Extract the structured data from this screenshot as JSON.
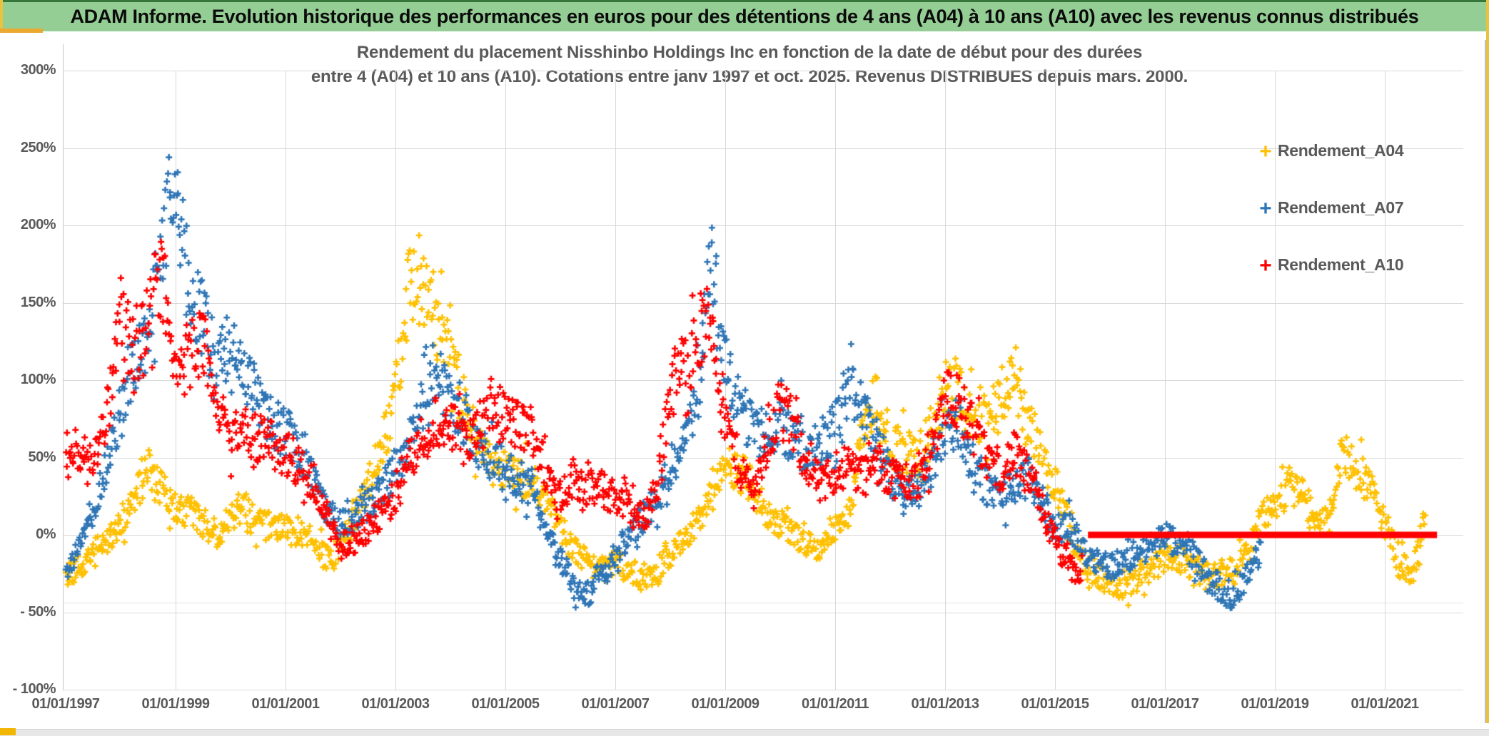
{
  "header": {
    "title": "ADAM Informe. Evolution historique des performances en euros pour des détentions de 4 ans (A04) à 10 ans (A10) avec les revenus connus distribués"
  },
  "chart_data": {
    "type": "scatter",
    "title_line1": "Rendement du placement Nisshinbo Holdings Inc en fonction de la date de début pour des durées",
    "title_line2": "entre 4 (A04) et 10 ans (A10). Cotations entre janv 1997 et oct. 2025. Revenus DISTRIBUES depuis mars. 2000.",
    "marker": "plus",
    "grid": true,
    "x_domain": [
      1996.95,
      2022.4
    ],
    "y_domain": [
      -100,
      300
    ],
    "y_ticks": [
      {
        "label": "300%",
        "value": 300
      },
      {
        "label": "250%",
        "value": 250
      },
      {
        "label": "200%",
        "value": 200
      },
      {
        "label": "150%",
        "value": 150
      },
      {
        "label": "100%",
        "value": 100
      },
      {
        "label": "50%",
        "value": 50
      },
      {
        "label": "0%",
        "value": 0
      },
      {
        "label": "- 50%",
        "value": -50
      },
      {
        "label": "- 100%",
        "value": -100
      }
    ],
    "x_ticks": [
      {
        "label": "01/01/1997",
        "year": 1997
      },
      {
        "label": "01/01/1999",
        "year": 1999
      },
      {
        "label": "01/01/2001",
        "year": 2001
      },
      {
        "label": "01/01/2003",
        "year": 2003
      },
      {
        "label": "01/01/2005",
        "year": 2005
      },
      {
        "label": "01/01/2007",
        "year": 2007
      },
      {
        "label": "01/01/2009",
        "year": 2009
      },
      {
        "label": "01/01/2011",
        "year": 2011
      },
      {
        "label": "01/01/2013",
        "year": 2013
      },
      {
        "label": "01/01/2015",
        "year": 2015
      },
      {
        "label": "01/01/2017",
        "year": 2017
      },
      {
        "label": "01/01/2019",
        "year": 2019
      },
      {
        "label": "01/01/2021",
        "year": 2021
      }
    ],
    "legend": {
      "position": "right",
      "entries": [
        {
          "label": "Rendement_A04",
          "color": "#FFC000"
        },
        {
          "label": "Rendement_A07",
          "color": "#2E75B6"
        },
        {
          "label": "Rendement_A10",
          "color": "#FF0000"
        }
      ]
    },
    "series": [
      {
        "name": "Rendement_A04",
        "color": "#FFC000",
        "start": 1997.0,
        "step": 0.25,
        "values": [
          -25,
          -20,
          -12,
          -5,
          8,
          25,
          42,
          28,
          18,
          15,
          8,
          0,
          12,
          20,
          8,
          5,
          5,
          2,
          -5,
          -15,
          -8,
          10,
          30,
          55,
          90,
          165,
          165,
          140,
          115,
          85,
          55,
          45,
          42,
          38,
          35,
          22,
          5,
          -10,
          -18,
          -22,
          -18,
          -22,
          -28,
          -25,
          -12,
          -4,
          8,
          30,
          50,
          42,
          30,
          15,
          8,
          0,
          -5,
          -8,
          2,
          15,
          70,
          92,
          58,
          55,
          50,
          68,
          92,
          90,
          80,
          75,
          82,
          108,
          72,
          55,
          32,
          5,
          -18,
          -25,
          -32,
          -35,
          -28,
          -22,
          -15,
          -15,
          -20,
          -25,
          -25,
          -22,
          -12,
          12,
          18,
          32,
          28,
          5,
          12,
          52,
          42,
          28,
          8,
          -15,
          -25,
          15
        ]
      },
      {
        "name": "Rendement_A07",
        "color": "#2E75B6",
        "start": 1997.0,
        "step": 0.25,
        "values": [
          -22,
          -5,
          15,
          45,
          80,
          115,
          135,
          185,
          235,
          150,
          140,
          110,
          120,
          110,
          85,
          72,
          68,
          55,
          35,
          15,
          5,
          12,
          20,
          30,
          42,
          60,
          85,
          100,
          92,
          75,
          58,
          48,
          45,
          36,
          28,
          0,
          -18,
          -32,
          -38,
          -25,
          -12,
          0,
          10,
          22,
          36,
          55,
          90,
          185,
          110,
          80,
          70,
          65,
          72,
          62,
          52,
          58,
          72,
          92,
          80,
          62,
          38,
          25,
          28,
          45,
          68,
          72,
          45,
          32,
          25,
          30,
          38,
          25,
          2,
          8,
          -10,
          -15,
          -20,
          -18,
          -10,
          -8,
          0,
          -8,
          -12,
          -25,
          -35,
          -40,
          -25,
          -10
        ]
      },
      {
        "name": "Rendement_A10",
        "color": "#FF0000",
        "start": 1997.0,
        "step": 0.25,
        "values": [
          52,
          55,
          42,
          75,
          150,
          112,
          150,
          165,
          110,
          115,
          125,
          85,
          60,
          70,
          62,
          58,
          52,
          45,
          32,
          12,
          -8,
          -5,
          5,
          15,
          25,
          50,
          65,
          72,
          68,
          62,
          68,
          82,
          75,
          70,
          68,
          40,
          25,
          38,
          30,
          28,
          25,
          18,
          10,
          30,
          95,
          110,
          125,
          140,
          72,
          45,
          28,
          55,
          85,
          68,
          45,
          30,
          42,
          45,
          38,
          45,
          38,
          35,
          35,
          55,
          92,
          85,
          70,
          50,
          42,
          52,
          38,
          18,
          -5,
          -20,
          -28
        ]
      }
    ],
    "flat_segment": {
      "series": "Rendement_A10",
      "value": 0,
      "from": 2015.6,
      "to": 2021.95,
      "color": "#FF0000"
    }
  },
  "footer": {
    "scrollbar": "horizontal-scrollbar"
  }
}
